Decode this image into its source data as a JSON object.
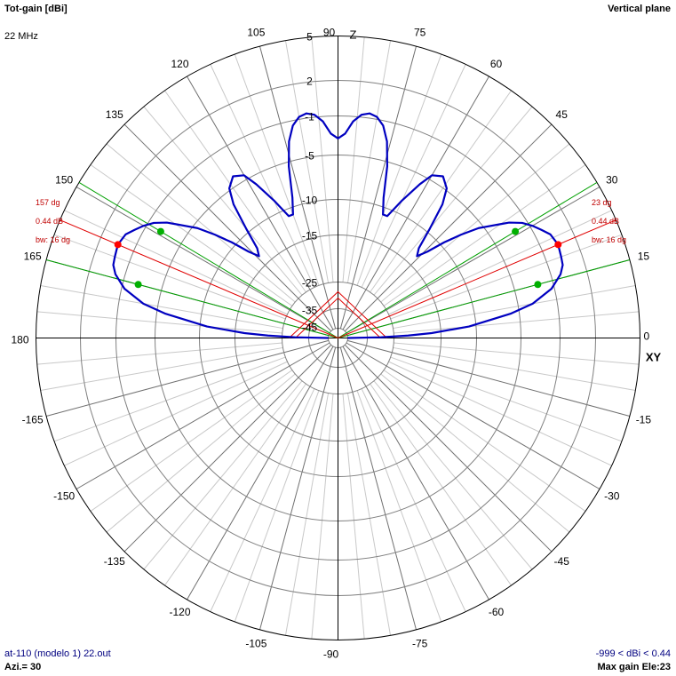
{
  "header": {
    "title": "Tot-gain [dBi]",
    "frequency": "22 MHz",
    "plane": "Vertical plane"
  },
  "footer": {
    "file": "at-110 (modelo 1) 22.out",
    "azimuth": "Azi.= 30",
    "range": "-999 < dBi < 0.44",
    "max_gain": "Max gain Ele:23"
  },
  "colors": {
    "pattern": "#0000c0",
    "beam_marker": "#e00000",
    "halfpower_marker": "#00a000",
    "grid": "#909090",
    "axes": "#000000",
    "label_red": "#c00000"
  },
  "chart_data": {
    "type": "polar-line",
    "title": "Tot-gain [dBi]",
    "axis_labels": {
      "top": "Z",
      "right": "XY"
    },
    "angle_unit": "degrees elevation",
    "angle_ticks": [
      0,
      15,
      30,
      45,
      60,
      75,
      90,
      105,
      120,
      135,
      150,
      165,
      180,
      -165,
      -150,
      -135,
      -120,
      -105,
      -90,
      -75,
      -60,
      -45,
      -30,
      -15
    ],
    "radial_rings": [
      5,
      2,
      -1,
      -5,
      -10,
      -15,
      -25,
      -35,
      -45
    ],
    "radial_ring_labels": [
      "5",
      "2",
      "-1",
      "-5",
      "-10",
      "-15",
      "-25",
      "-35",
      "-45"
    ],
    "series": [
      {
        "angles_deg": [
          0,
          1,
          2,
          3,
          5,
          8,
          10,
          13,
          16,
          18,
          20,
          23,
          26,
          28,
          30,
          32,
          34,
          35,
          38,
          40,
          42,
          44,
          46,
          48,
          50,
          52,
          54,
          57,
          60,
          62,
          65,
          68,
          70,
          72,
          74,
          76,
          78,
          80,
          82,
          84,
          86,
          88,
          90
        ],
        "gain_dbi": [
          -45,
          -30,
          -22,
          -17,
          -11,
          -6,
          -3.5,
          -1.3,
          -0.2,
          0.2,
          0.3,
          0.44,
          0.2,
          -0.3,
          -0.8,
          -1.5,
          -2.6,
          -3.4,
          -5.5,
          -7.5,
          -9.5,
          -12,
          -13.5,
          -12.5,
          -9.5,
          -6.5,
          -4.8,
          -4,
          -4.5,
          -6,
          -8.5,
          -11,
          -11,
          -9,
          -5.5,
          -3,
          -1.5,
          -0.8,
          -0.6,
          -0.8,
          -1.5,
          -2.8,
          -3.3
        ]
      }
    ],
    "symmetry": "mirrored about 90 degrees",
    "beam_markers": [
      {
        "side": "right",
        "angle_label": "23 dg",
        "gain_label": "0.44 dB",
        "bw_label": "bw: 16 dg",
        "angle_deg": 23,
        "gain_dbi": 0.44,
        "halfpower_deg": [
          15,
          31
        ]
      },
      {
        "side": "left",
        "angle_label": "157 dg",
        "gain_label": "0.44 dB",
        "bw_label": "bw: 16 dg",
        "angle_deg": 157,
        "gain_dbi": 0.44,
        "halfpower_deg": [
          149,
          165
        ]
      }
    ]
  }
}
